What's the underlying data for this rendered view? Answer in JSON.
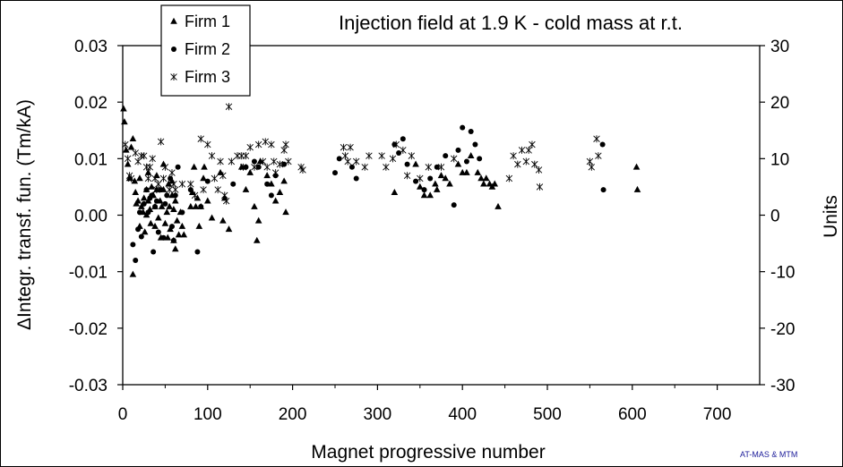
{
  "chart_data": {
    "type": "scatter",
    "title": "Injection field at 1.9 K - cold mass at r.t.",
    "xlabel": "Magnet progressive number",
    "ylabel": "ΔIntegr. transf. fun. (Tm/kA)",
    "y2label": "Units",
    "credit": "AT-MAS & MTM",
    "xlim": [
      0,
      750
    ],
    "ylim": [
      -0.03,
      0.03
    ],
    "y2lim": [
      -30,
      30
    ],
    "xticks": [
      "0",
      "100",
      "200",
      "300",
      "400",
      "500",
      "600",
      "700"
    ],
    "xtick_values": [
      0,
      100,
      200,
      300,
      400,
      500,
      600,
      700
    ],
    "yticks": [
      "-0.03",
      "-0.02",
      "-0.01",
      "0.00",
      "0.01",
      "0.02",
      "0.03"
    ],
    "ytick_values": [
      -0.03,
      -0.02,
      -0.01,
      0.0,
      0.01,
      0.02,
      0.03
    ],
    "y2ticks": [
      "-30",
      "-20",
      "-10",
      "0",
      "10",
      "20",
      "30"
    ],
    "y2tick_values": [
      -30,
      -20,
      -10,
      0,
      10,
      20,
      30
    ],
    "grid": false,
    "legend": "top-left",
    "series": [
      {
        "name": "Firm 1",
        "marker": "triangle",
        "color": "#000000",
        "points": [
          [
            1,
            0.0188
          ],
          [
            2,
            0.0165
          ],
          [
            4,
            0.0115
          ],
          [
            6,
            0.009
          ],
          [
            8,
            0.0065
          ],
          [
            10,
            0.012
          ],
          [
            12,
            0.0135
          ],
          [
            12,
            -0.0105
          ],
          [
            14,
            0.006
          ],
          [
            15,
            0.004
          ],
          [
            16,
            0.002
          ],
          [
            18,
            0.0025
          ],
          [
            20,
            0.0065
          ],
          [
            20,
            -0.002
          ],
          [
            22,
            0.0015
          ],
          [
            24,
            0.0005
          ],
          [
            25,
            0.003
          ],
          [
            26,
            -0.003
          ],
          [
            28,
            0.0045
          ],
          [
            28,
            0.0
          ],
          [
            30,
            0.0025
          ],
          [
            30,
            0.0075
          ],
          [
            32,
            0.001
          ],
          [
            33,
            -0.0015
          ],
          [
            34,
            0.005
          ],
          [
            35,
            0.0035
          ],
          [
            36,
            0.0035
          ],
          [
            38,
            -0.002
          ],
          [
            38,
            0.0015
          ],
          [
            40,
            0.0045
          ],
          [
            40,
            0.007
          ],
          [
            42,
            -0.0005
          ],
          [
            44,
            0.0025
          ],
          [
            45,
            -0.004
          ],
          [
            46,
            0.0015
          ],
          [
            48,
            0.009
          ],
          [
            48,
            0.0045
          ],
          [
            50,
            -0.0015
          ],
          [
            52,
            0.0005
          ],
          [
            53,
            -0.004
          ],
          [
            54,
            0.0055
          ],
          [
            55,
            0.0015
          ],
          [
            56,
            -0.0025
          ],
          [
            58,
            0.0035
          ],
          [
            58,
            0.006
          ],
          [
            60,
            -0.0045
          ],
          [
            60,
            0.001
          ],
          [
            62,
            -0.006
          ],
          [
            62,
            0.0025
          ],
          [
            64,
            -0.001
          ],
          [
            66,
            -0.0035
          ],
          [
            68,
            0.0005
          ],
          [
            70,
            -0.002
          ],
          [
            72,
            -0.0035
          ],
          [
            80,
            0.0015
          ],
          [
            82,
            0.004
          ],
          [
            84,
            0.0085
          ],
          [
            86,
            0.0015
          ],
          [
            88,
            0.003
          ],
          [
            90,
            -0.002
          ],
          [
            92,
            0.0015
          ],
          [
            95,
            0.0065
          ],
          [
            96,
            0.0085
          ],
          [
            100,
            0.0025
          ],
          [
            105,
            -0.0005
          ],
          [
            115,
            0.0075
          ],
          [
            118,
            -0.001
          ],
          [
            120,
            0.003
          ],
          [
            125,
            -0.0025
          ],
          [
            140,
            0.0085
          ],
          [
            145,
            0.0045
          ],
          [
            150,
            0.0075
          ],
          [
            155,
            0.0015
          ],
          [
            158,
            -0.0045
          ],
          [
            160,
            -0.001
          ],
          [
            162,
            0.0095
          ],
          [
            170,
            0.007
          ],
          [
            175,
            0.0055
          ],
          [
            180,
            0.0025
          ],
          [
            185,
            0.004
          ],
          [
            190,
            0.006
          ],
          [
            192,
            0.0005
          ],
          [
            320,
            0.004
          ],
          [
            345,
            0.009
          ],
          [
            350,
            0.005
          ],
          [
            355,
            0.0035
          ],
          [
            362,
            0.0035
          ],
          [
            368,
            0.0055
          ],
          [
            370,
            0.0045
          ],
          [
            375,
            0.007
          ],
          [
            380,
            0.0065
          ],
          [
            385,
            0.0055
          ],
          [
            395,
            0.009
          ],
          [
            400,
            0.0075
          ],
          [
            405,
            0.0075
          ],
          [
            410,
            0.0105
          ],
          [
            418,
            0.0075
          ],
          [
            422,
            0.0065
          ],
          [
            425,
            0.0055
          ],
          [
            428,
            0.0065
          ],
          [
            432,
            0.0055
          ],
          [
            435,
            0.005
          ],
          [
            438,
            0.0055
          ],
          [
            442,
            0.0015
          ],
          [
            605,
            0.0085
          ],
          [
            606,
            0.0045
          ]
        ]
      },
      {
        "name": "Firm 2",
        "marker": "circle",
        "color": "#000000",
        "points": [
          [
            12,
            -0.0052
          ],
          [
            15,
            -0.008
          ],
          [
            18,
            -0.0025
          ],
          [
            20,
            0.0005
          ],
          [
            22,
            -0.0038
          ],
          [
            25,
            0.002
          ],
          [
            28,
            0.0045
          ],
          [
            30,
            0.0005
          ],
          [
            32,
            0.003
          ],
          [
            34,
            0.0035
          ],
          [
            36,
            -0.0065
          ],
          [
            38,
            0.0015
          ],
          [
            40,
            0.0025
          ],
          [
            42,
            -0.003
          ],
          [
            45,
            0.0045
          ],
          [
            48,
            -0.004
          ],
          [
            50,
            0.002
          ],
          [
            52,
            0.0035
          ],
          [
            56,
            0.0065
          ],
          [
            58,
            -0.002
          ],
          [
            60,
            -0.0045
          ],
          [
            62,
            0.0035
          ],
          [
            65,
            0.0085
          ],
          [
            70,
            0.0005
          ],
          [
            80,
            0.0045
          ],
          [
            88,
            -0.0065
          ],
          [
            92,
            0.0015
          ],
          [
            100,
            0.006
          ],
          [
            130,
            0.0055
          ],
          [
            145,
            0.0085
          ],
          [
            155,
            0.0095
          ],
          [
            160,
            0.0085
          ],
          [
            170,
            0.0055
          ],
          [
            175,
            0.0035
          ],
          [
            180,
            0.007
          ],
          [
            190,
            0.009
          ],
          [
            250,
            0.0075
          ],
          [
            255,
            0.01
          ],
          [
            270,
            0.0085
          ],
          [
            275,
            0.0065
          ],
          [
            320,
            0.0125
          ],
          [
            325,
            0.011
          ],
          [
            330,
            0.0135
          ],
          [
            335,
            0.009
          ],
          [
            345,
            0.006
          ],
          [
            355,
            0.0045
          ],
          [
            362,
            0.0065
          ],
          [
            370,
            0.0085
          ],
          [
            380,
            0.0105
          ],
          [
            390,
            0.0018
          ],
          [
            395,
            0.0115
          ],
          [
            400,
            0.0155
          ],
          [
            405,
            0.0095
          ],
          [
            410,
            0.0148
          ],
          [
            415,
            0.0125
          ],
          [
            420,
            0.01
          ],
          [
            565,
            0.0125
          ],
          [
            566,
            0.0045
          ]
        ]
      },
      {
        "name": "Firm 3",
        "marker": "asterisk",
        "color": "#000000",
        "points": [
          [
            3,
            0.0125
          ],
          [
            6,
            0.01
          ],
          [
            8,
            0.007
          ],
          [
            10,
            0.0065
          ],
          [
            15,
            0.011
          ],
          [
            18,
            0.0095
          ],
          [
            22,
            0.0105
          ],
          [
            25,
            0.0105
          ],
          [
            28,
            0.0085
          ],
          [
            30,
            0.0065
          ],
          [
            32,
            0.0085
          ],
          [
            35,
            0.01
          ],
          [
            38,
            0.0065
          ],
          [
            40,
            0.0045
          ],
          [
            42,
            0.0055
          ],
          [
            45,
            0.013
          ],
          [
            48,
            0.0065
          ],
          [
            50,
            0.0085
          ],
          [
            55,
            0.0045
          ],
          [
            58,
            0.0075
          ],
          [
            60,
            0.0055
          ],
          [
            62,
            0.0045
          ],
          [
            70,
            0.0055
          ],
          [
            80,
            0.0055
          ],
          [
            85,
            0.0035
          ],
          [
            92,
            0.0135
          ],
          [
            95,
            0.0045
          ],
          [
            100,
            0.0125
          ],
          [
            105,
            0.0105
          ],
          [
            108,
            0.0065
          ],
          [
            112,
            0.0045
          ],
          [
            115,
            0.0095
          ],
          [
            118,
            0.007
          ],
          [
            120,
            0.0035
          ],
          [
            122,
            0.0025
          ],
          [
            125,
            0.0192
          ],
          [
            128,
            0.0095
          ],
          [
            135,
            0.0105
          ],
          [
            140,
            0.0105
          ],
          [
            142,
            0.0085
          ],
          [
            145,
            0.0105
          ],
          [
            150,
            0.012
          ],
          [
            155,
            0.0085
          ],
          [
            160,
            0.0125
          ],
          [
            165,
            0.0095
          ],
          [
            168,
            0.013
          ],
          [
            170,
            0.0085
          ],
          [
            175,
            0.0125
          ],
          [
            178,
            0.0095
          ],
          [
            180,
            0.0075
          ],
          [
            185,
            0.009
          ],
          [
            190,
            0.0115
          ],
          [
            192,
            0.0125
          ],
          [
            195,
            0.0095
          ],
          [
            210,
            0.0085
          ],
          [
            212,
            0.008
          ],
          [
            260,
            0.012
          ],
          [
            262,
            0.0105
          ],
          [
            265,
            0.0095
          ],
          [
            268,
            0.012
          ],
          [
            275,
            0.0095
          ],
          [
            285,
            0.0085
          ],
          [
            290,
            0.0105
          ],
          [
            305,
            0.0105
          ],
          [
            310,
            0.0085
          ],
          [
            318,
            0.01
          ],
          [
            322,
            0.0125
          ],
          [
            330,
            0.0115
          ],
          [
            335,
            0.007
          ],
          [
            340,
            0.0105
          ],
          [
            350,
            0.0065
          ],
          [
            360,
            0.0085
          ],
          [
            375,
            0.0085
          ],
          [
            390,
            0.01
          ],
          [
            455,
            0.0065
          ],
          [
            460,
            0.0105
          ],
          [
            465,
            0.009
          ],
          [
            470,
            0.0115
          ],
          [
            475,
            0.0095
          ],
          [
            478,
            0.0115
          ],
          [
            482,
            0.0125
          ],
          [
            485,
            0.009
          ],
          [
            490,
            0.008
          ],
          [
            491,
            0.005
          ],
          [
            550,
            0.0095
          ],
          [
            552,
            0.0085
          ],
          [
            558,
            0.0135
          ],
          [
            560,
            0.0105
          ]
        ]
      }
    ]
  }
}
